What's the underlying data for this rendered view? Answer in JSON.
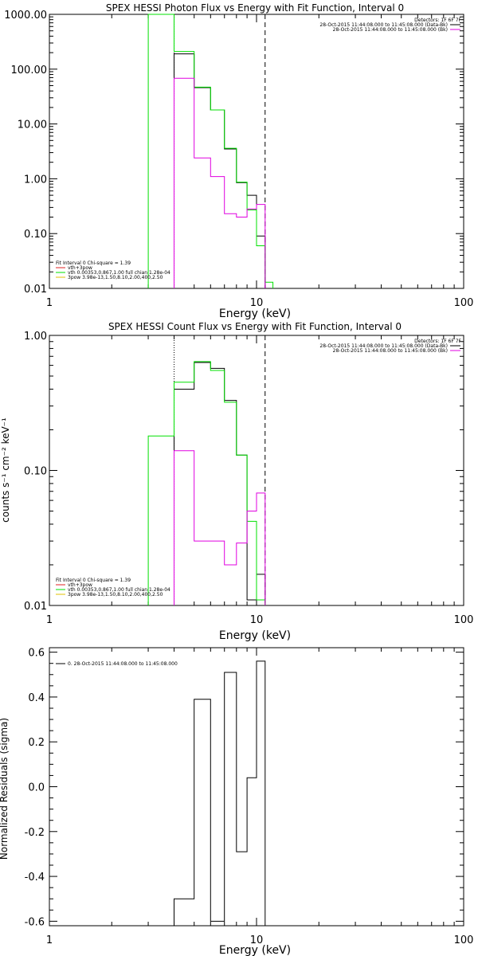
{
  "chart_data": [
    {
      "type": "line",
      "title": "SPEX HESSI Photon Flux vs Energy with Fit Function, Interval 0",
      "xlabel": "Energy (keV)",
      "ylabel": "",
      "xscale": "log",
      "yscale": "log",
      "xlim": [
        1,
        100
      ],
      "ylim": [
        0.01,
        1000
      ],
      "xtick_labels": [
        "1",
        "10",
        "100"
      ],
      "ytick_labels": [
        "1000.00",
        "100.00",
        "10.00",
        "1.00",
        "0.10",
        "0.01"
      ],
      "vlines": [
        {
          "x": 4,
          "style": "dotted"
        },
        {
          "x": 11,
          "style": "dashed"
        }
      ],
      "legend_right": [
        "Detectors: 1F 6F 7F",
        "28-Oct-2015 11:44:08.000 to 11:45:08.000 (Data-Bk)",
        "28-Oct-2015 11:44:08.000 to 11:45:08.000 (Bk)"
      ],
      "legend_left": [
        "Fit Interval 0   Chi-square = 1.39",
        "vth+3pow",
        "vth 0.00353,0.867,1.00  full chian 1.28e-04",
        "3pow 3.98e-13,1.50,8.10,2.00,400,2.50"
      ],
      "series": [
        {
          "name": "28-Oct-2015 11:44:08.000 to 11:45:08.000 (Data-Bk)",
          "color": "#000000",
          "steps": [
            [
              4,
              5,
              190
            ],
            [
              5,
              6,
              46
            ],
            [
              6,
              7,
              18
            ],
            [
              7,
              8,
              3.5
            ],
            [
              8,
              9,
              0.85
            ],
            [
              9,
              10,
              0.5
            ],
            [
              10,
              11,
              0.09
            ]
          ]
        },
        {
          "name": "vth+3pow",
          "color": "#00e000",
          "steps": [
            [
              3,
              4,
              1000
            ],
            [
              4,
              5,
              210
            ],
            [
              5,
              6,
              47
            ],
            [
              6,
              7,
              18
            ],
            [
              7,
              8,
              3.6
            ],
            [
              8,
              9,
              0.87
            ],
            [
              9,
              10,
              0.27
            ],
            [
              10,
              11,
              0.06
            ],
            [
              11,
              12,
              0.013
            ]
          ]
        },
        {
          "name": "28-Oct-2015 11:44:08.000 to 11:45:08.000 (Bk)",
          "color": "#e000e0",
          "steps": [
            [
              4,
              5,
              68
            ],
            [
              5,
              6,
              2.4
            ],
            [
              6,
              7,
              1.1
            ],
            [
              7,
              8,
              0.23
            ],
            [
              8,
              9,
              0.2
            ],
            [
              9,
              10,
              0.28
            ],
            [
              10,
              11,
              0.34
            ]
          ]
        }
      ]
    },
    {
      "type": "line",
      "title": "SPEX HESSI Count Flux vs Energy with Fit Function, Interval 0",
      "xlabel": "Energy (keV)",
      "ylabel": "counts s⁻¹ cm⁻² keV⁻¹",
      "xscale": "log",
      "yscale": "log",
      "xlim": [
        1,
        100
      ],
      "ylim": [
        0.01,
        1
      ],
      "xtick_labels": [
        "1",
        "10",
        "100"
      ],
      "ytick_labels": [
        "1.00",
        "0.10",
        "0.01"
      ],
      "vlines": [
        {
          "x": 4,
          "style": "dotted"
        },
        {
          "x": 11,
          "style": "dashed"
        }
      ],
      "legend_right": [
        "Detectors: 1F 6F 7F",
        "28-Oct-2015 11:44:08.000 to 11:45:08.000 (Data-Bk)",
        "28-Oct-2015 11:44:08.000 to 11:45:08.000 (Bk)"
      ],
      "legend_left": [
        "Fit Interval 0   Chi-square = 1.39",
        "vth+3pow",
        "vth 0.00353,0.867,1.00  full chian 1.28e-04",
        "3pow 3.98e-13,1.50,8.10,2.00,400,2.50"
      ],
      "series": [
        {
          "name": "28-Oct-2015 11:44:08.000 to 11:45:08.000 (Data-Bk)",
          "color": "#000000",
          "steps": [
            [
              4,
              5,
              0.4
            ],
            [
              5,
              6,
              0.63
            ],
            [
              6,
              7,
              0.57
            ],
            [
              7,
              8,
              0.33
            ],
            [
              8,
              9,
              0.13
            ],
            [
              9,
              10,
              0.011
            ],
            [
              10,
              11,
              0.017
            ]
          ]
        },
        {
          "name": "vth+3pow",
          "color": "#00e000",
          "steps": [
            [
              3,
              4,
              0.18
            ],
            [
              4,
              5,
              0.45
            ],
            [
              5,
              6,
              0.64
            ],
            [
              6,
              7,
              0.55
            ],
            [
              7,
              8,
              0.32
            ],
            [
              8,
              9,
              0.13
            ],
            [
              9,
              10,
              0.042
            ],
            [
              10,
              11,
              0.011
            ]
          ]
        },
        {
          "name": "28-Oct-2015 11:44:08.000 to 11:45:08.000 (Bk)",
          "color": "#e000e0",
          "steps": [
            [
              4,
              5,
              0.14
            ],
            [
              5,
              6,
              0.03
            ],
            [
              6,
              7,
              0.03
            ],
            [
              7,
              8,
              0.02
            ],
            [
              8,
              9,
              0.029
            ],
            [
              9,
              10,
              0.05
            ],
            [
              10,
              11,
              0.068
            ]
          ]
        }
      ]
    },
    {
      "type": "line",
      "title": "",
      "xlabel": "Energy (keV)",
      "ylabel": "Normalized Residuals (sigma)",
      "xscale": "log",
      "yscale": "linear",
      "xlim": [
        1,
        100
      ],
      "ylim": [
        -0.62,
        0.62
      ],
      "xtick_labels": [
        "1",
        "10",
        "100"
      ],
      "ytick_labels": [
        "0.6",
        "0.4",
        "0.2",
        "0.0",
        "-0.2",
        "-0.4",
        "-0.6"
      ],
      "legend_left": [
        "0. 28-Oct-2015 11:44:08.000 to 11:45:08.000"
      ],
      "series": [
        {
          "name": "0. 28-Oct-2015 11:44:08.000 to 11:45:08.000",
          "color": "#000000",
          "steps": [
            [
              4,
              5,
              -0.5
            ],
            [
              5,
              6,
              0.39
            ],
            [
              6,
              7,
              -0.6
            ],
            [
              7,
              8,
              0.51
            ],
            [
              8,
              9,
              -0.29
            ],
            [
              9,
              10,
              0.04
            ],
            [
              10,
              11,
              0.56
            ]
          ]
        }
      ]
    }
  ]
}
